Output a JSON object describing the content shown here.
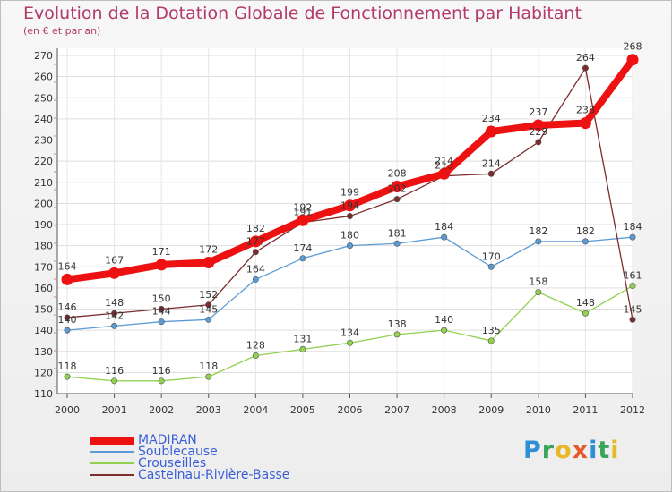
{
  "title": "Evolution de la Dotation Globale de Fonctionnement par Habitant",
  "subtitle": "(en € et par an)",
  "logo": {
    "letters": [
      {
        "char": "P",
        "color": "#2f8fd6"
      },
      {
        "char": "r",
        "color": "#3aa45a"
      },
      {
        "char": "o",
        "color": "#e6b82a"
      },
      {
        "char": "x",
        "color": "#e55a2a"
      },
      {
        "char": "i",
        "color": "#2f8fd6"
      },
      {
        "char": "t",
        "color": "#3aa45a"
      },
      {
        "char": "i",
        "color": "#e6b82a"
      }
    ]
  },
  "chart_data": {
    "type": "line",
    "title": "Evolution de la Dotation Globale de Fonctionnement par Habitant",
    "subtitle": "(en € et par an)",
    "xlabel": "",
    "ylabel": "",
    "x": [
      "2000",
      "2001",
      "2002",
      "2003",
      "2004",
      "2005",
      "2006",
      "2007",
      "2008",
      "2009",
      "2010",
      "2011",
      "2012"
    ],
    "ylim": [
      110,
      270
    ],
    "yticks": [
      110,
      120,
      130,
      140,
      150,
      160,
      170,
      180,
      190,
      200,
      210,
      220,
      230,
      240,
      250,
      260,
      270
    ],
    "grid": "horizontal",
    "legend_position": "bottom-left",
    "series": [
      {
        "name": "MADIRAN",
        "color": "#ee1111",
        "emphasis": true,
        "values": [
          164,
          167,
          171,
          172,
          182,
          192,
          199,
          208,
          214,
          234,
          237,
          238,
          268
        ]
      },
      {
        "name": "Soublecause",
        "color": "#5b9bd5",
        "values": [
          140,
          142,
          144,
          145,
          164,
          174,
          180,
          181,
          184,
          170,
          182,
          182,
          184
        ]
      },
      {
        "name": "Crouseilles",
        "color": "#92d050",
        "values": [
          118,
          116,
          116,
          118,
          128,
          131,
          134,
          138,
          140,
          135,
          158,
          148,
          161
        ]
      },
      {
        "name": "Castelnau-Rivière-Basse",
        "color": "#7b2c2c",
        "values": [
          146,
          148,
          150,
          152,
          177,
          191,
          194,
          202,
          213,
          214,
          229,
          264,
          145
        ]
      }
    ]
  }
}
